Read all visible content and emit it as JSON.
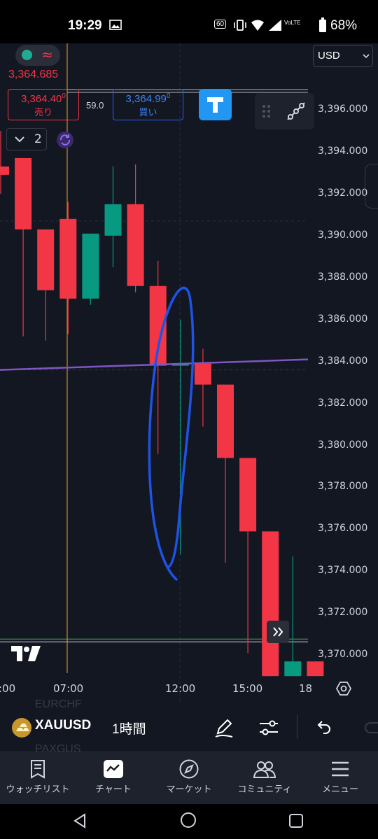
{
  "status": {
    "time": "19:29",
    "battery": "68%",
    "network_badge": "60",
    "volte_badge": "VoLTE"
  },
  "toolbar": {
    "price_top": "3,364.685",
    "sell_price": "3,364.40",
    "sell_sup": "0",
    "sell_label": "売り",
    "spread": "59.0",
    "buy_price": "3,364.99",
    "buy_sup": "0",
    "buy_label": "買い",
    "indicators_count": "2",
    "currency": "USD"
  },
  "y_axis": [
    "3,396.000",
    "3,394.000",
    "3,392.000",
    "3,390.000",
    "3,388.000",
    "3,386.000",
    "3,384.000",
    "3,382.000",
    "3,380.000",
    "3,378.000",
    "3,376.000",
    "3,374.000",
    "3,372.000",
    "3,370.000"
  ],
  "x_axis": [
    ":00",
    "07:00",
    "12:00",
    "15:00",
    "18"
  ],
  "bottom": {
    "symbol": "XAUUSD",
    "interval": "1時間",
    "ghost_top": "EURCHF",
    "ghost_bottom": "PAXGUS"
  },
  "nav": [
    {
      "label": "ウォッチリスト",
      "icon": "watchlist-icon"
    },
    {
      "label": "チャート",
      "icon": "chart-icon"
    },
    {
      "label": "マーケット",
      "icon": "compass-icon"
    },
    {
      "label": "コミュニティ",
      "icon": "community-icon"
    },
    {
      "label": "メニュー",
      "icon": "menu-icon"
    }
  ],
  "colors": {
    "bull": "#089981",
    "bear": "#f23645",
    "trendline": "#7e57c2",
    "annotation": "#1e53e5",
    "session_line": "#f7a21b",
    "bottom_line": "#4caf50"
  },
  "chart_data": {
    "type": "candlestick",
    "symbol": "XAUUSD",
    "interval": "1時間",
    "ylim": [
      3369.0,
      3397.5
    ],
    "x_ticks": [
      ":00",
      "07:00",
      "12:00",
      "15:00",
      "18"
    ],
    "candles": [
      {
        "open": 3393.3,
        "high": 3395.0,
        "low": 3392.0,
        "close": 3392.9
      },
      {
        "open": 3393.7,
        "high": 3393.7,
        "low": 3385.2,
        "close": 3390.3
      },
      {
        "open": 3390.3,
        "high": 3390.3,
        "low": 3385.0,
        "close": 3387.4
      },
      {
        "open": 3390.8,
        "high": 3391.6,
        "low": 3385.3,
        "close": 3387.0
      },
      {
        "open": 3387.0,
        "high": 3390.0,
        "low": 3386.7,
        "close": 3390.1
      },
      {
        "open": 3390.0,
        "high": 3393.3,
        "low": 3388.5,
        "close": 3391.5
      },
      {
        "open": 3391.5,
        "high": 3393.4,
        "low": 3387.3,
        "close": 3387.6
      },
      {
        "open": 3387.6,
        "high": 3388.8,
        "low": 3379.6,
        "close": 3383.8
      },
      {
        "open": 3383.8,
        "high": 3386.0,
        "low": 3374.8,
        "close": 3383.9
      },
      {
        "open": 3383.9,
        "high": 3384.6,
        "low": 3380.9,
        "close": 3382.9
      },
      {
        "open": 3382.9,
        "high": 3382.9,
        "low": 3374.4,
        "close": 3379.4
      },
      {
        "open": 3379.4,
        "high": 3379.4,
        "low": 3370.1,
        "close": 3375.9
      },
      {
        "open": 3375.9,
        "high": 3375.9,
        "low": 3369.0,
        "close": 3369.0
      },
      {
        "open": 3369.0,
        "high": 3374.7,
        "low": 3369.0,
        "close": 3369.7
      },
      {
        "open": 3369.7,
        "high": 3369.7,
        "low": 3369.0,
        "close": 3369.0
      }
    ],
    "horizontal_lines": [
      3396.9,
      3370.7
    ],
    "trendline": {
      "from": 3383.6,
      "to": 3384.1
    },
    "vertical_session_time": "07:00"
  }
}
